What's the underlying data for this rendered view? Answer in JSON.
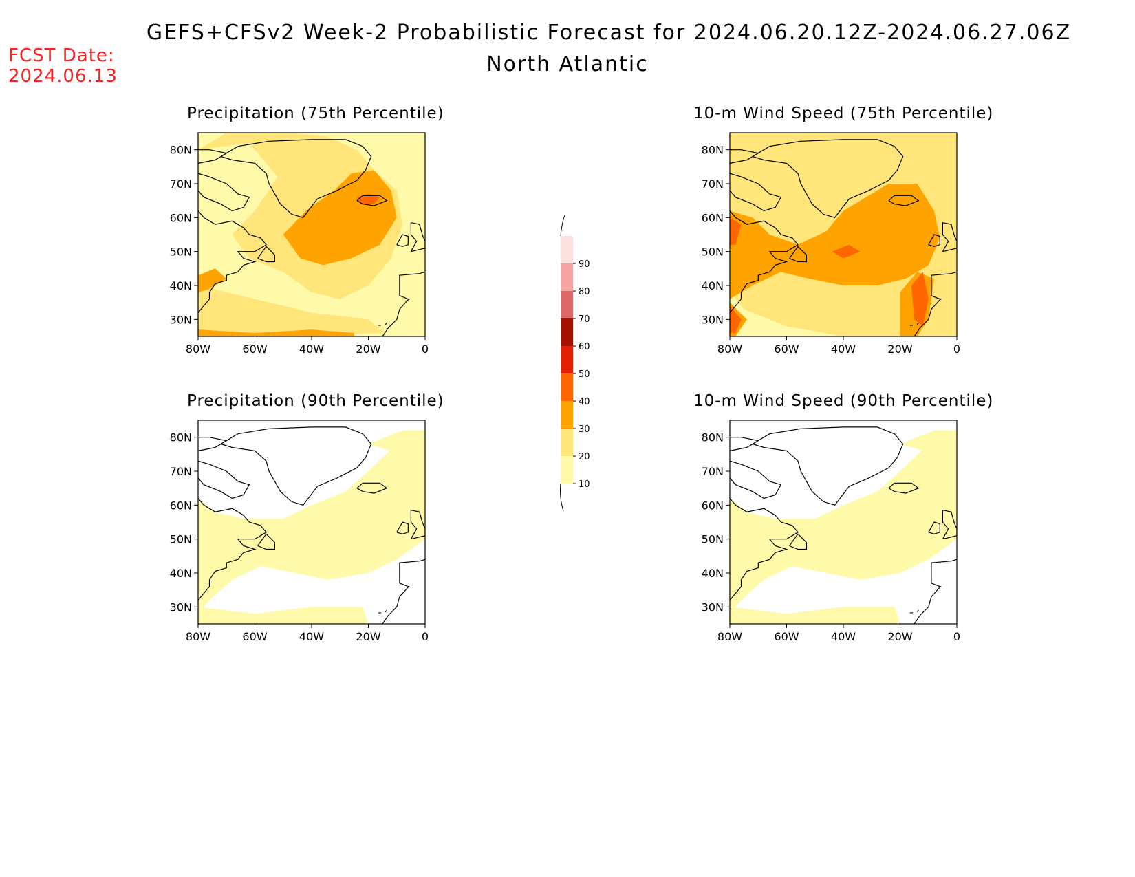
{
  "header": {
    "title": "GEFS+CFSv2 Week-2 Probabilistic Forecast for 2024.06.20.12Z-2024.06.27.06Z",
    "region": "North Atlantic",
    "fcst_label": "FCST Date:",
    "fcst_date": "2024.06.13"
  },
  "panels": [
    {
      "id": "precip75",
      "title": "Precipitation (75th Percentile)",
      "level": "high"
    },
    {
      "id": "wind75",
      "title": "10-m Wind Speed (75th Percentile)",
      "level": "very-high"
    },
    {
      "id": "precip90",
      "title": "Precipitation (90th Percentile)",
      "level": "low"
    },
    {
      "id": "wind90",
      "title": "10-m Wind Speed (90th Percentile)",
      "level": "low"
    }
  ],
  "axes": {
    "lat_labels": [
      "80N",
      "70N",
      "60N",
      "50N",
      "40N",
      "30N"
    ],
    "lon_labels": [
      "80W",
      "60W",
      "40W",
      "20W",
      "0"
    ]
  },
  "colorbar": {
    "levels": [
      "10",
      "20",
      "30",
      "40",
      "50",
      "60",
      "70",
      "80",
      "90"
    ],
    "colors": [
      "#fffaaa",
      "#ffe57a",
      "#ffa300",
      "#ff6600",
      "#e02000",
      "#a50f00",
      "#e06868",
      "#f5a3a3",
      "#fde0e0"
    ]
  }
}
